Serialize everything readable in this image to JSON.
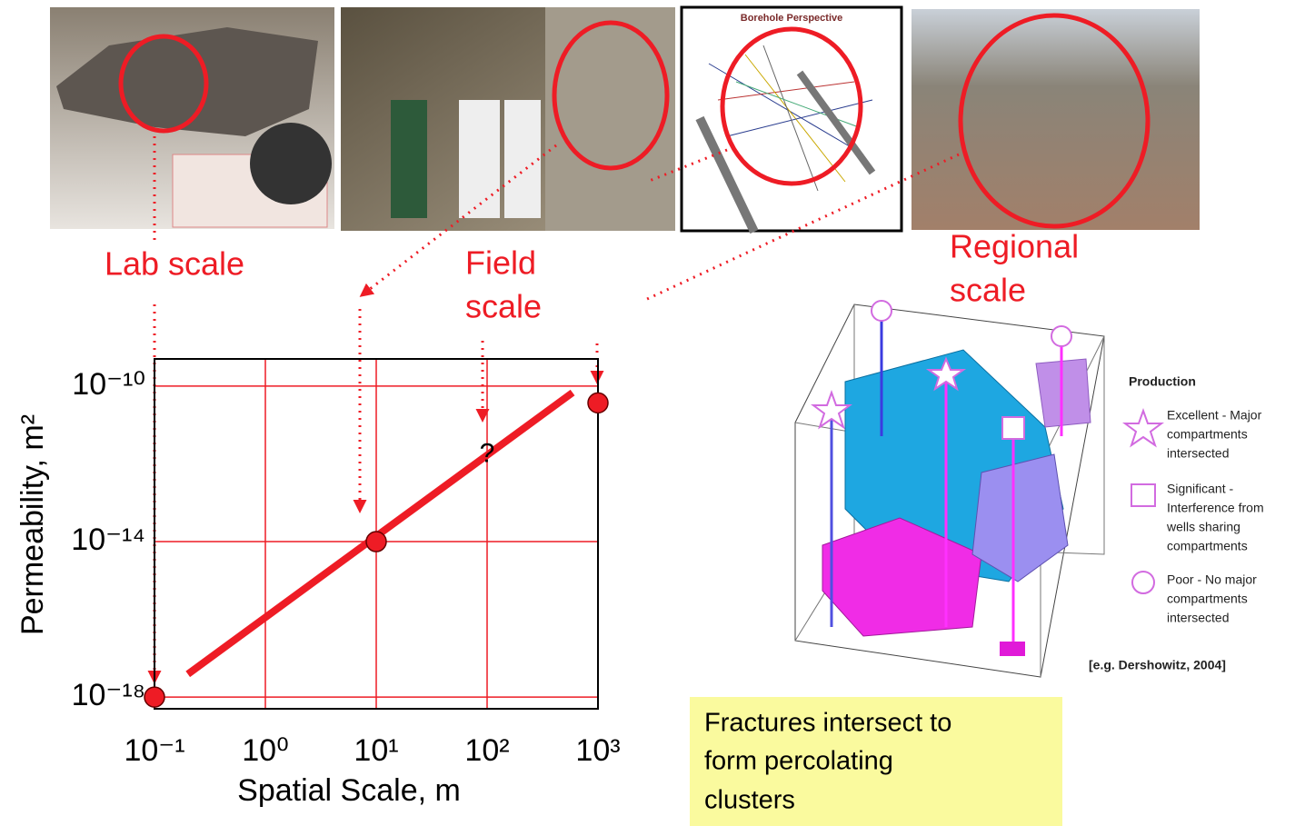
{
  "chart_data": {
    "type": "scatter",
    "x": [
      0.1,
      10,
      1000
    ],
    "values": [
      1e-18,
      1e-14,
      3.7e-11
    ],
    "color": "#ee1c25",
    "trend": {
      "x": [
        0.2,
        590
      ],
      "values": [
        3.9e-18,
        6.8e-11
      ],
      "color": "#ee1c25"
    },
    "xlabel": "Spatial Scale, m",
    "ylabel": "Permeability, m²",
    "xscale": "log",
    "yscale": "log",
    "xlim": [
      0.1,
      1000
    ],
    "ylim": [
      5e-19,
      5e-10
    ],
    "xticks": [
      {
        "value": 0.1,
        "label": "10⁻¹"
      },
      {
        "value": 1,
        "label": "10⁰"
      },
      {
        "value": 10,
        "label": "10¹"
      },
      {
        "value": 100,
        "label": "10²"
      },
      {
        "value": 1000,
        "label": "10³"
      }
    ],
    "yticks": [
      {
        "value": 1e-18,
        "label": "10⁻¹⁸"
      },
      {
        "value": 1e-14,
        "label": "10⁻¹⁴"
      },
      {
        "value": 1e-10,
        "label": "10⁻¹⁰"
      }
    ],
    "grid": true,
    "grid_color": "#ee1c25",
    "annotation": {
      "text": "?",
      "x": 100,
      "y": 1.7e-12
    }
  },
  "scale_labels": {
    "lab": "Lab scale",
    "field": [
      "Field",
      "scale"
    ],
    "regional": [
      "Regional",
      "scale"
    ]
  },
  "image_title": "Borehole Perspective",
  "legend": {
    "title": "Production",
    "items": [
      [
        "Excellent - Major",
        "compartments",
        "intersected"
      ],
      [
        "Significant -",
        "Interference from",
        "wells sharing",
        "compartments"
      ],
      [
        "Poor - No major",
        "compartments",
        "intersected"
      ]
    ]
  },
  "citation": "[e.g. Dershowitz, 2004]",
  "note": [
    "Fractures intersect to",
    "form percolating",
    "clusters"
  ]
}
